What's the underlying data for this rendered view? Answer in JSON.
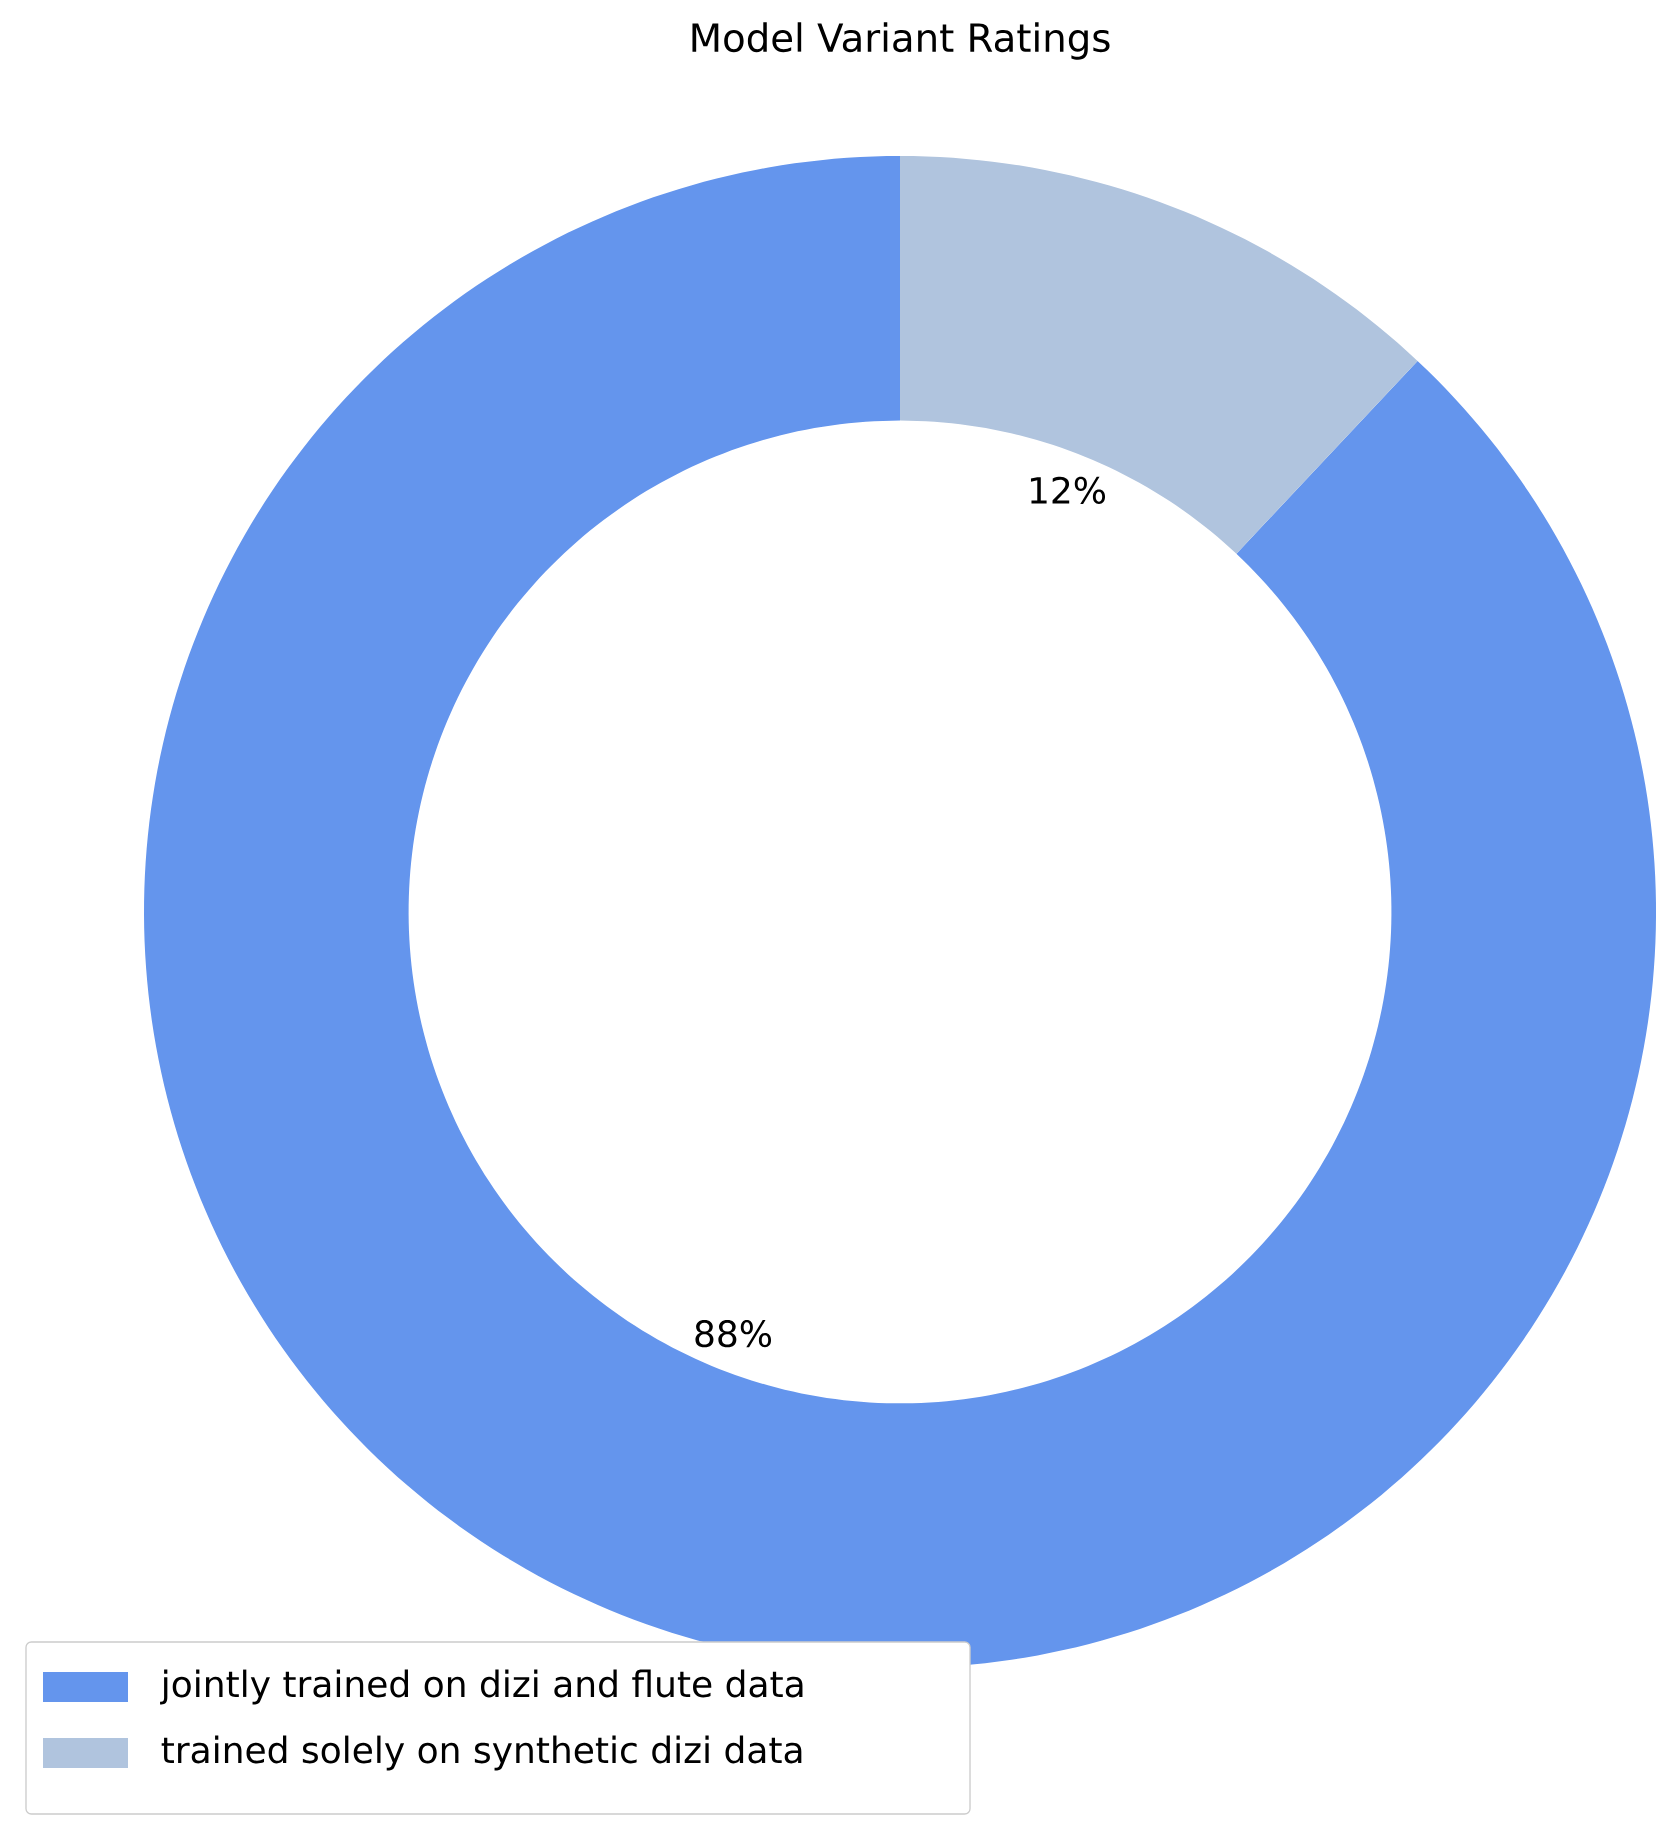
{
  "chart_data": {
    "type": "donut",
    "title": "Model Variant Ratings",
    "categories": [
      "jointly trained on dizi and flute data",
      "trained solely on synthetic dizi data"
    ],
    "values": [
      88,
      12
    ],
    "colors": [
      "#6495ed",
      "#b0c4de"
    ],
    "value_labels": [
      "88%",
      "12%"
    ],
    "legend": "bottom left"
  }
}
